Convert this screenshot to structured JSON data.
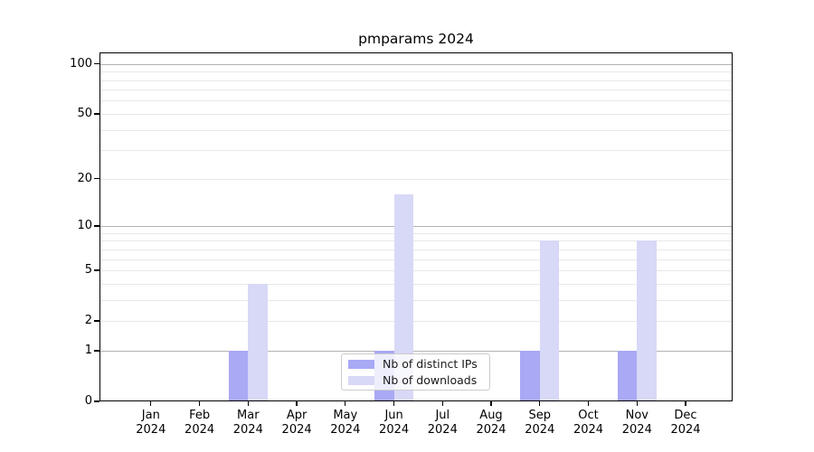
{
  "chart_data": {
    "type": "bar",
    "title": "pmparams 2024",
    "x": {
      "months": [
        "Jan",
        "Feb",
        "Mar",
        "Apr",
        "May",
        "Jun",
        "Jul",
        "Aug",
        "Sep",
        "Oct",
        "Nov",
        "Dec"
      ],
      "year": "2024"
    },
    "y_axis": {
      "scale": "symlog",
      "major_ticks": [
        0,
        1,
        2,
        5,
        10,
        20,
        50,
        100
      ],
      "minor_ticks": [
        3,
        4,
        6,
        7,
        8,
        9,
        30,
        40,
        60,
        70,
        80,
        90
      ],
      "decade_ticks": [
        1,
        10,
        100
      ],
      "ylim": [
        0,
        117
      ],
      "grid": true
    },
    "series": [
      {
        "key": "distinct-ips",
        "name": "Nb of distinct IPs",
        "color": "#a9a9f5",
        "values": [
          0,
          0,
          1,
          0,
          0,
          1,
          0,
          0,
          1,
          0,
          1,
          0
        ]
      },
      {
        "key": "downloads",
        "name": "Nb of downloads",
        "color": "#d8d8f7",
        "values": [
          0,
          0,
          4,
          0,
          0,
          16,
          0,
          0,
          8,
          0,
          8,
          0
        ]
      }
    ],
    "legend": {
      "position": "lower-center",
      "entries": [
        "Nb of distinct IPs",
        "Nb of downloads"
      ]
    }
  },
  "colors": {
    "decade_gridline": "#b2b2b2",
    "minor_gridline": "#e8e8e8",
    "axis": "#000000",
    "background": "#ffffff"
  }
}
